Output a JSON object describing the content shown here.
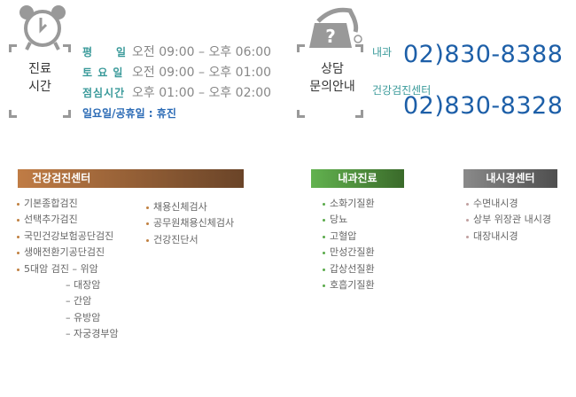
{
  "hours": {
    "label_line1": "진료",
    "label_line2": "시간",
    "rows": [
      {
        "day": "평　　일",
        "time": "오전 09:00 – 오후 06:00"
      },
      {
        "day": "토 요 일",
        "time": "오전 09:00 – 오후 01:00"
      },
      {
        "day": "점심시간",
        "time": "오후 01:00 – 오후 02:00"
      }
    ],
    "closed": "일요일/공휴일 : 휴진",
    "icon": "alarm-clock-icon"
  },
  "contact": {
    "label_line1": "상담",
    "label_line2": "문의안내",
    "icon": "telephone-question-icon",
    "lines": [
      {
        "dept": "내과",
        "phone": "02)830-8388"
      },
      {
        "dept": "건강검진센터",
        "phone": "02)830-8328"
      }
    ]
  },
  "sections": {
    "checkup": {
      "title": "건강검진센터",
      "col1": [
        "기본종합검진",
        "선택추가검진",
        "국민건강보험공단검진",
        "생애전환기공단검진",
        "5대암 검진 – 위암"
      ],
      "sub": [
        "– 대장암",
        "– 간암",
        "– 유방암",
        "– 자궁경부암"
      ],
      "col2": [
        "채용신체검사",
        "공무원채용신체검사",
        "건강진단서"
      ],
      "color": "#a86a3a"
    },
    "internal": {
      "title": "내과진료",
      "items": [
        "소화기질환",
        "당뇨",
        "고혈압",
        "만성간질환",
        "갑상선질환",
        "호흡기질환"
      ],
      "color": "#4f9a3c"
    },
    "endoscopy": {
      "title": "내시경센터",
      "items": [
        "수면내시경",
        "상부 위장관 내시경",
        "대장내시경"
      ],
      "color": "#6a6a6a"
    }
  }
}
